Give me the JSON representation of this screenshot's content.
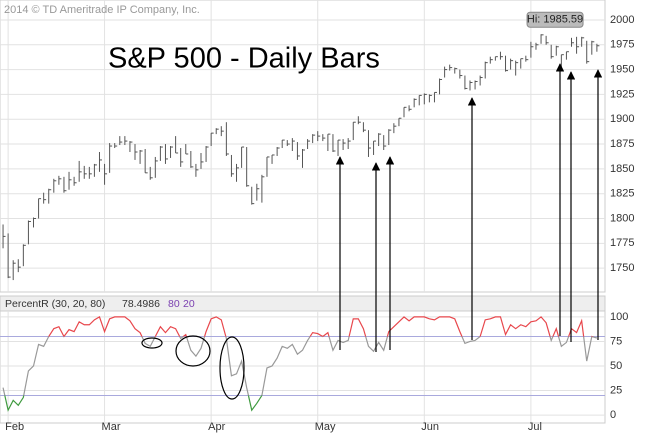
{
  "chart_data": [
    {
      "type": "ohlc",
      "title": "S&P 500 - Daily Bars",
      "copyright": "2014 © TD Ameritrade IP Company, Inc.",
      "hi_label": "Hi: 1985.59",
      "hi_index": 106,
      "color": "#555555",
      "ylim": [
        1728,
        2008
      ],
      "yticks": [
        1750,
        1775,
        1800,
        1825,
        1850,
        1875,
        1900,
        1925,
        1950,
        1975,
        2000
      ],
      "xlim": [
        -0.6,
        118.6
      ],
      "grid": true,
      "close": [
        1782,
        1741,
        1755,
        1751,
        1773,
        1797,
        1800,
        1820,
        1819,
        1829,
        1838,
        1840,
        1828,
        1839,
        1836,
        1847,
        1845,
        1845,
        1854,
        1859,
        1845,
        1873,
        1873,
        1877,
        1878,
        1877,
        1867,
        1868,
        1846,
        1841,
        1858,
        1872,
        1860,
        1872,
        1866,
        1857,
        1865,
        1852,
        1849,
        1857,
        1872,
        1886,
        1890,
        1888,
        1865,
        1845,
        1851,
        1872,
        1833,
        1815,
        1830,
        1842,
        1862,
        1864,
        1871,
        1879,
        1875,
        1878,
        1863,
        1869,
        1878,
        1884,
        1883,
        1881,
        1885,
        1868,
        1879,
        1876,
        1878,
        1897,
        1897,
        1889,
        1871,
        1878,
        1885,
        1873,
        1889,
        1893,
        1901,
        1912,
        1910,
        1920,
        1924,
        1925,
        1924,
        1927,
        1940,
        1950,
        1952,
        1951,
        1944,
        1931,
        1937,
        1938,
        1942,
        1957,
        1960,
        1963,
        1963,
        1949,
        1959,
        1957,
        1961,
        1960,
        1973,
        1975,
        1985,
        1977,
        1963,
        1973,
        1965,
        1968,
        1977,
        1973,
        1982,
        1958,
        1978,
        1974
      ],
      "high": [
        1794,
        1785,
        1758,
        1759,
        1774,
        1798,
        1801,
        1820,
        1826,
        1830,
        1840,
        1843,
        1842,
        1847,
        1842,
        1858,
        1853,
        1852,
        1855,
        1867,
        1855,
        1876,
        1876,
        1883,
        1883,
        1878,
        1875,
        1869,
        1870,
        1852,
        1862,
        1873,
        1875,
        1873,
        1883,
        1871,
        1875,
        1868,
        1855,
        1866,
        1873,
        1886,
        1891,
        1893,
        1897,
        1864,
        1855,
        1872,
        1872,
        1832,
        1835,
        1844,
        1862,
        1864,
        1872,
        1879,
        1879,
        1881,
        1877,
        1870,
        1880,
        1885,
        1888,
        1885,
        1885,
        1885,
        1879,
        1880,
        1881,
        1897,
        1903,
        1897,
        1889,
        1878,
        1886,
        1884,
        1890,
        1896,
        1901,
        1912,
        1914,
        1921,
        1924,
        1926,
        1925,
        1927,
        1941,
        1953,
        1955,
        1952,
        1950,
        1944,
        1939,
        1939,
        1944,
        1958,
        1963,
        1963,
        1968,
        1964,
        1961,
        1959,
        1961,
        1964,
        1978,
        1977,
        1985.59,
        1984,
        1975,
        1974,
        1965,
        1968,
        1982,
        1983,
        1983,
        1979,
        1979,
        1976
      ],
      "low": [
        1770,
        1740,
        1738,
        1746,
        1752,
        1774,
        1791,
        1800,
        1815,
        1815,
        1826,
        1834,
        1826,
        1829,
        1833,
        1837,
        1840,
        1840,
        1842,
        1847,
        1834,
        1846,
        1871,
        1874,
        1874,
        1867,
        1859,
        1855,
        1846,
        1839,
        1841,
        1858,
        1855,
        1861,
        1866,
        1852,
        1865,
        1851,
        1842,
        1850,
        1857,
        1873,
        1885,
        1883,
        1863,
        1842,
        1837,
        1851,
        1832,
        1814,
        1818,
        1816,
        1842,
        1855,
        1863,
        1871,
        1873,
        1868,
        1859,
        1851,
        1870,
        1876,
        1878,
        1878,
        1868,
        1867,
        1863,
        1869,
        1870,
        1879,
        1895,
        1887,
        1862,
        1864,
        1873,
        1869,
        1874,
        1886,
        1893,
        1902,
        1908,
        1912,
        1914,
        1915,
        1917,
        1917,
        1925,
        1942,
        1949,
        1946,
        1941,
        1930,
        1929,
        1930,
        1934,
        1941,
        1956,
        1959,
        1960,
        1948,
        1950,
        1944,
        1951,
        1958,
        1962,
        1970,
        1976,
        1975,
        1961,
        1964,
        1952,
        1960,
        1973,
        1966,
        1973,
        1956,
        1965,
        1968
      ]
    },
    {
      "type": "line",
      "title": "PercentR (30, 20, 80)",
      "upper": 80,
      "lower": 20,
      "color": "#999999",
      "upper_color": "#e8474c",
      "lower_color": "#3f9a3f",
      "band_color": "#a9a9dd",
      "ylim": [
        -5,
        106
      ],
      "yticks": [
        0,
        25,
        50,
        75,
        100
      ],
      "xlim": [
        -0.6,
        118.6
      ],
      "xticks": [
        {
          "value": 1,
          "label": "Feb"
        },
        {
          "value": 20,
          "label": "Mar"
        },
        {
          "value": 41,
          "label": "Apr"
        },
        {
          "value": 62,
          "label": "May"
        },
        {
          "value": 83,
          "label": "Jun"
        },
        {
          "value": 104,
          "label": "Jul"
        }
      ],
      "values": [
        28,
        5,
        15,
        10,
        18,
        45,
        50,
        72,
        70,
        80,
        88,
        90,
        80,
        87,
        85,
        95,
        92,
        92,
        97,
        100,
        85,
        98,
        100,
        100,
        100,
        96,
        88,
        84,
        73,
        70,
        80,
        90,
        84,
        90,
        88,
        78,
        82,
        66,
        60,
        68,
        85,
        98,
        100,
        97,
        78,
        40,
        42,
        55,
        28,
        5,
        12,
        20,
        48,
        50,
        58,
        70,
        68,
        72,
        62,
        66,
        76,
        84,
        83,
        80,
        84,
        66,
        76,
        74,
        76,
        98,
        98,
        88,
        70,
        65,
        74,
        66,
        85,
        90,
        95,
        100,
        96,
        100,
        100,
        100,
        98,
        97,
        100,
        100,
        100,
        98,
        85,
        73,
        75,
        76,
        80,
        97,
        98,
        100,
        100,
        82,
        92,
        88,
        92,
        90,
        95,
        96,
        100,
        94,
        76,
        88,
        70,
        74,
        88,
        84,
        96,
        55,
        80,
        78.4986
      ]
    }
  ]
}
